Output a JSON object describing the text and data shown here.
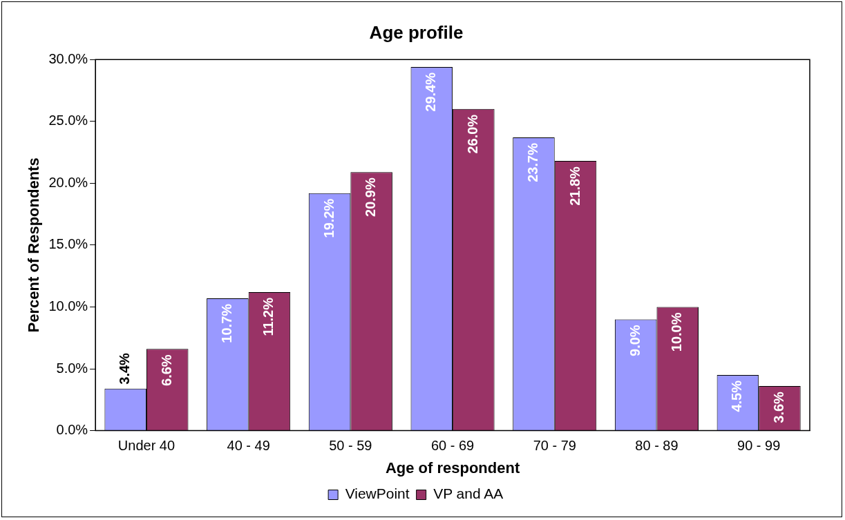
{
  "chart_data": {
    "type": "bar",
    "title": "Age profile",
    "xlabel": "Age of respondent",
    "ylabel": "Percent of Respondents",
    "categories": [
      "Under 40",
      "40 - 49",
      "50 - 59",
      "60 - 69",
      "70 - 79",
      "80 - 89",
      "90 - 99"
    ],
    "series": [
      {
        "name": "ViewPoint",
        "color": "#9999ff",
        "values": [
          3.4,
          10.7,
          19.2,
          29.4,
          23.7,
          9.0,
          4.5
        ],
        "value_labels": [
          "3.4%",
          "10.7%",
          "19.2%",
          "29.4%",
          "23.7%",
          "9.0%",
          "4.5%"
        ]
      },
      {
        "name": "VP and AA",
        "color": "#993366",
        "values": [
          6.6,
          11.2,
          20.9,
          26.0,
          21.8,
          10.0,
          3.6
        ],
        "value_labels": [
          "6.6%",
          "11.2%",
          "20.9%",
          "26.0%",
          "21.8%",
          "10.0%",
          "3.6%"
        ]
      }
    ],
    "ylim": [
      0,
      30
    ],
    "yticks": [
      {
        "value": 0,
        "label": "0.0%"
      },
      {
        "value": 5,
        "label": "5.0%"
      },
      {
        "value": 10,
        "label": "10.0%"
      },
      {
        "value": 15,
        "label": "15.0%"
      },
      {
        "value": 20,
        "label": "20.0%"
      },
      {
        "value": 25,
        "label": "25.0%"
      },
      {
        "value": 30,
        "label": "30.0%"
      }
    ],
    "grid": false,
    "legend": "bottom"
  }
}
